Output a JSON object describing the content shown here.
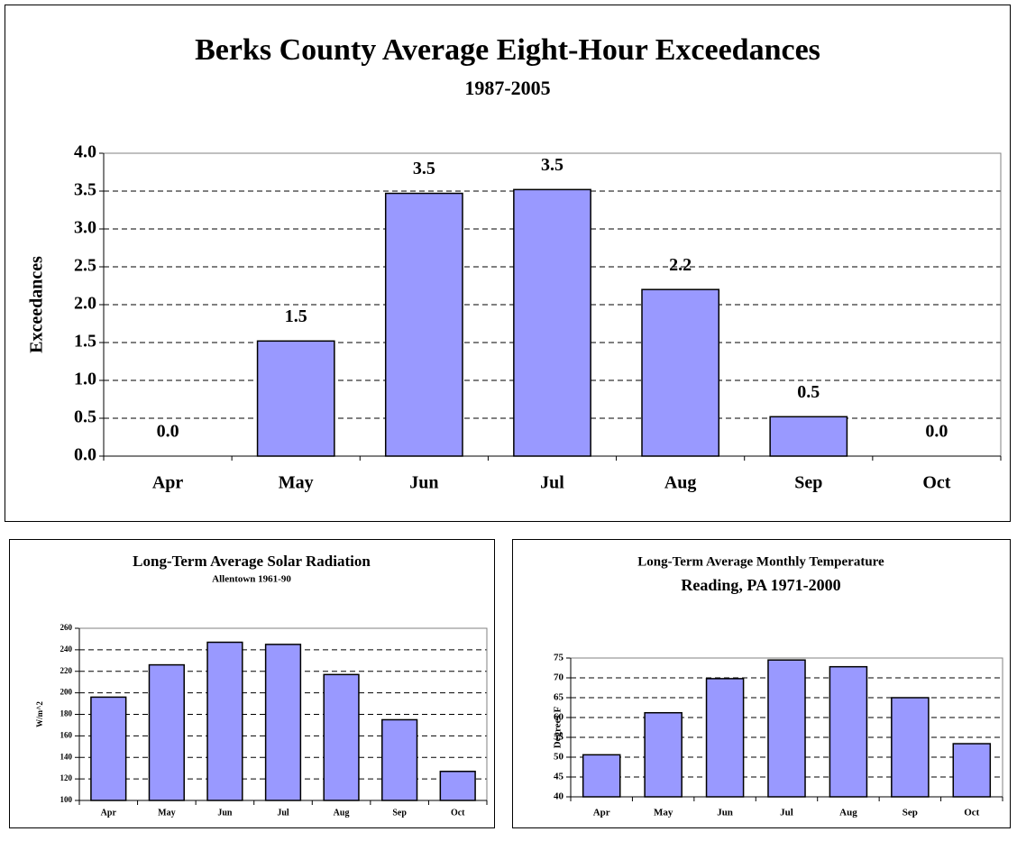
{
  "chart_data": [
    {
      "type": "bar",
      "title": "Berks County Average Eight-Hour Exceedances",
      "subtitle": "1987-2005",
      "y_label": "Exceedances",
      "categories": [
        "Apr",
        "May",
        "Jun",
        "Jul",
        "Aug",
        "Sep",
        "Oct"
      ],
      "values": [
        0,
        1.52,
        3.47,
        3.52,
        2.2,
        0.52,
        0
      ],
      "value_labels": [
        "0.0",
        "1.5",
        "3.5",
        "3.5",
        "2.2",
        "0.5",
        "0.0"
      ],
      "color": "#9999ff",
      "ylim": [
        0,
        4
      ],
      "yticks": [
        {
          "value": 0,
          "label": "0.0"
        },
        0.5,
        {
          "value": 1,
          "label": "1.0"
        },
        1.5,
        {
          "value": 2,
          "label": "2.0"
        },
        2.5,
        {
          "value": 3,
          "label": "3.0"
        },
        3.5,
        {
          "value": 4,
          "label": "4.0"
        }
      ],
      "grid": true
    },
    {
      "type": "bar",
      "title": "Long-Term Average Solar Radiation",
      "subtitle": "Allentown 1961-90",
      "y_label": "W/m^2",
      "categories": [
        "Apr",
        "May",
        "Jun",
        "Jul",
        "Aug",
        "Sep",
        "Oct"
      ],
      "values": [
        196,
        226,
        247,
        245,
        217,
        175,
        127
      ],
      "color": "#9999ff",
      "ylim": [
        100,
        260
      ],
      "yticks": [
        100,
        120,
        140,
        160,
        180,
        200,
        220,
        240,
        260
      ],
      "grid": true
    },
    {
      "type": "bar",
      "title": "Long-Term Average Monthly Temperature",
      "subtitle": "Reading, PA  1971-2000",
      "y_label": "Degrees F",
      "categories": [
        "Apr",
        "May",
        "Jun",
        "Jul",
        "Aug",
        "Sep",
        "Oct"
      ],
      "values": [
        50.6,
        61.2,
        69.8,
        74.5,
        72.8,
        65,
        53.4
      ],
      "color": "#9999ff",
      "ylim": [
        40,
        75
      ],
      "yticks": [
        40,
        45,
        50,
        55,
        60,
        65,
        70,
        75
      ],
      "grid": true
    }
  ]
}
